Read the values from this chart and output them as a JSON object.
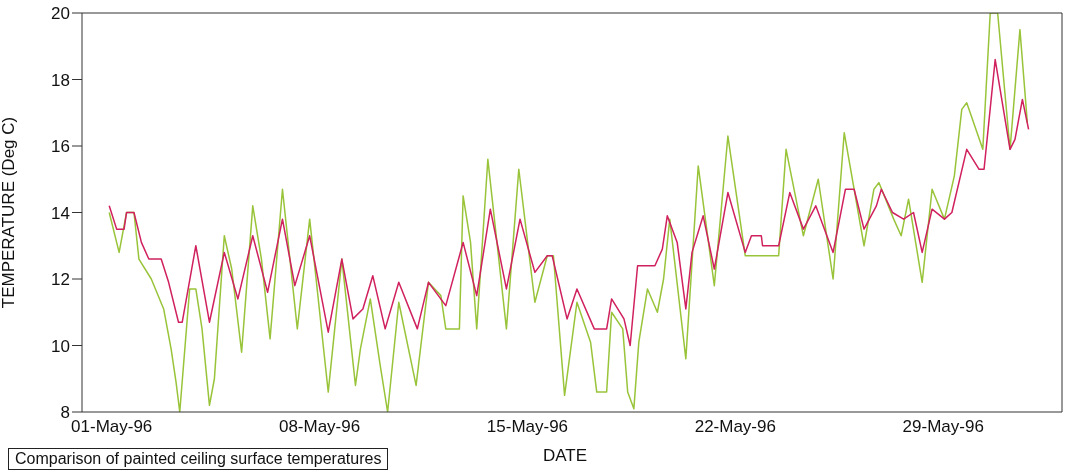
{
  "chart_data": {
    "type": "line",
    "xlabel": "DATE",
    "ylabel": "TEMPERATURE (Deg C)",
    "annotations": [
      "Comparison of painted ceiling surface temperatures"
    ],
    "xlim": [
      "1996-04-30",
      "1996-06-02"
    ],
    "xticks": [
      {
        "value": "1996-05-01",
        "label": "01-May-96"
      },
      {
        "value": "1996-05-08",
        "label": "08-May-96"
      },
      {
        "value": "1996-05-15",
        "label": "15-May-96"
      },
      {
        "value": "1996-05-22",
        "label": "22-May-96"
      },
      {
        "value": "1996-05-29",
        "label": "29-May-96"
      }
    ],
    "ylim": [
      8,
      20
    ],
    "yticks": [
      8,
      10,
      12,
      14,
      16,
      18,
      20
    ],
    "grid": false,
    "legend": false,
    "marker": "none",
    "line_style": "solid",
    "series": [
      {
        "color": "#99c43a",
        "x": [
          "1996-04-30T22:00",
          "1996-05-01T06:00",
          "1996-05-01T12:00",
          "1996-05-01T18:00",
          "1996-05-01T22:00",
          "1996-05-02T08:00",
          "1996-05-02T18:00",
          "1996-05-03T00:00",
          "1996-05-03T04:00",
          "1996-05-03T07:00",
          "1996-05-03T15:00",
          "1996-05-03T20:00",
          "1996-05-04T01:00",
          "1996-05-04T07:00",
          "1996-05-04T11:00",
          "1996-05-04T19:00",
          "1996-05-05T01:00",
          "1996-05-05T09:00",
          "1996-05-05T18:00",
          "1996-05-06T01:00",
          "1996-05-06T08:00",
          "1996-05-06T18:00",
          "1996-05-07T06:00",
          "1996-05-07T16:00",
          "1996-05-08T07:00",
          "1996-05-08T18:00",
          "1996-05-09T05:00",
          "1996-05-09T09:00",
          "1996-05-09T17:00",
          "1996-05-10T01:00",
          "1996-05-10T07:00",
          "1996-05-10T16:00",
          "1996-05-11T06:00",
          "1996-05-11T16:00",
          "1996-05-12T02:00",
          "1996-05-12T06:00",
          "1996-05-12T17:00",
          "1996-05-12T20:00",
          "1996-05-13T02:00",
          "1996-05-13T07:00",
          "1996-05-13T16:00",
          "1996-05-14T07:00",
          "1996-05-14T17:00",
          "1996-05-15T06:00",
          "1996-05-15T16:00",
          "1996-05-15T21:00",
          "1996-05-16T06:00",
          "1996-05-16T16:00",
          "1996-05-17T03:00",
          "1996-05-17T08:00",
          "1996-05-17T16:00",
          "1996-05-17T20:00",
          "1996-05-18T05:00",
          "1996-05-18T09:00",
          "1996-05-18T14:00",
          "1996-05-18T18:00",
          "1996-05-19T01:00",
          "1996-05-19T09:00",
          "1996-05-19T14:00",
          "1996-05-19T19:00",
          "1996-05-20T08:00",
          "1996-05-20T18:00",
          "1996-05-21T07:00",
          "1996-05-21T18:00",
          "1996-05-22T08:00",
          "1996-05-22T18:00",
          "1996-05-23T11:00",
          "1996-05-23T17:00",
          "1996-05-24T07:00",
          "1996-05-24T19:00",
          "1996-05-25T07:00",
          "1996-05-25T16:00",
          "1996-05-26T08:00",
          "1996-05-26T16:00",
          "1996-05-26T20:00",
          "1996-05-27T08:00",
          "1996-05-27T14:00",
          "1996-05-27T20:00",
          "1996-05-28T07:00",
          "1996-05-28T15:00",
          "1996-05-29T01:00",
          "1996-05-29T09:00",
          "1996-05-29T15:00",
          "1996-05-29T19:00",
          "1996-05-30T08:00",
          "1996-05-30T14:00",
          "1996-05-30T20:00",
          "1996-05-31T06:00",
          "1996-05-31T14:00",
          "1996-05-31T20:00"
        ],
        "values": [
          14.0,
          12.8,
          14.0,
          14.0,
          12.6,
          12.0,
          11.1,
          9.9,
          8.9,
          8.0,
          11.7,
          11.7,
          10.5,
          8.2,
          9.0,
          13.3,
          12.3,
          9.8,
          14.2,
          12.6,
          10.2,
          14.7,
          10.5,
          13.8,
          8.6,
          12.6,
          8.8,
          9.9,
          11.4,
          9.4,
          8.0,
          11.3,
          8.8,
          11.9,
          11.5,
          10.5,
          10.5,
          14.5,
          13.1,
          10.5,
          15.6,
          10.5,
          15.3,
          11.3,
          12.7,
          12.7,
          8.5,
          11.3,
          10.1,
          8.6,
          8.6,
          11.0,
          10.5,
          8.6,
          8.1,
          10.1,
          11.7,
          11.0,
          12.0,
          13.8,
          9.6,
          15.4,
          11.8,
          16.3,
          12.7,
          12.7,
          12.7,
          15.9,
          13.3,
          15.0,
          12.0,
          16.4,
          13.0,
          14.7,
          14.9,
          13.8,
          13.3,
          14.4,
          11.9,
          14.7,
          13.8,
          15.1,
          17.1,
          17.3,
          15.9,
          20,
          20,
          15.9,
          19.5,
          16.7
        ]
      },
      {
        "color": "#d0215e",
        "x": [
          "1996-04-30T22:00",
          "1996-05-01T04:00",
          "1996-05-01T10:00",
          "1996-05-01T12:00",
          "1996-05-01T18:00",
          "1996-05-02T00:00",
          "1996-05-02T06:00",
          "1996-05-02T16:00",
          "1996-05-02T22:00",
          "1996-05-03T06:00",
          "1996-05-03T09:00",
          "1996-05-03T20:00",
          "1996-05-04T07:00",
          "1996-05-04T19:00",
          "1996-05-05T06:00",
          "1996-05-05T18:00",
          "1996-05-06T06:00",
          "1996-05-06T18:00",
          "1996-05-07T04:00",
          "1996-05-07T16:00",
          "1996-05-08T07:00",
          "1996-05-08T18:00",
          "1996-05-09T03:00",
          "1996-05-09T11:00",
          "1996-05-09T19:00",
          "1996-05-10T05:00",
          "1996-05-10T16:00",
          "1996-05-11T07:00",
          "1996-05-11T16:00",
          "1996-05-12T06:00",
          "1996-05-12T20:00",
          "1996-05-13T07:00",
          "1996-05-13T18:00",
          "1996-05-14T07:00",
          "1996-05-14T18:00",
          "1996-05-15T06:00",
          "1996-05-15T16:00",
          "1996-05-15T20:00",
          "1996-05-16T08:00",
          "1996-05-16T16:00",
          "1996-05-17T06:00",
          "1996-05-17T16:00",
          "1996-05-17T20:00",
          "1996-05-18T06:00",
          "1996-05-18T11:00",
          "1996-05-18T17:00",
          "1996-05-19T07:00",
          "1996-05-19T13:00",
          "1996-05-19T17:00",
          "1996-05-20T01:00",
          "1996-05-20T08:00",
          "1996-05-20T13:00",
          "1996-05-20T22:00",
          "1996-05-21T07:00",
          "1996-05-21T18:00",
          "1996-05-22T08:00",
          "1996-05-22T13:00",
          "1996-05-22T21:00",
          "1996-05-22T22:00",
          "1996-05-23T11:00",
          "1996-05-23T20:00",
          "1996-05-24T07:00",
          "1996-05-24T17:00",
          "1996-05-25T07:00",
          "1996-05-25T17:00",
          "1996-05-26T00:00",
          "1996-05-26T08:00",
          "1996-05-26T18:00",
          "1996-05-26T22:00",
          "1996-05-27T07:00",
          "1996-05-27T16:00",
          "1996-05-28T00:00",
          "1996-05-28T07:00",
          "1996-05-28T15:00",
          "1996-05-29T01:00",
          "1996-05-29T07:00",
          "1996-05-29T19:00",
          "1996-05-30T05:00",
          "1996-05-30T09:00",
          "1996-05-30T18:00",
          "1996-05-31T06:00",
          "1996-05-31T10:00",
          "1996-05-31T16:00",
          "1996-05-31T21:00"
        ],
        "values": [
          14.2,
          13.5,
          13.5,
          14.0,
          14.0,
          13.1,
          12.6,
          12.6,
          11.9,
          10.7,
          10.7,
          13.0,
          10.7,
          12.8,
          11.4,
          13.3,
          11.6,
          13.8,
          11.8,
          13.3,
          10.4,
          12.6,
          10.8,
          11.1,
          12.1,
          10.5,
          11.9,
          10.5,
          11.9,
          11.2,
          13.1,
          11.5,
          14.1,
          11.7,
          13.8,
          12.2,
          12.7,
          12.7,
          10.8,
          11.7,
          10.5,
          10.5,
          11.4,
          10.8,
          10.0,
          12.4,
          12.4,
          12.9,
          13.9,
          13.1,
          11.1,
          12.8,
          13.9,
          12.3,
          14.6,
          12.8,
          13.3,
          13.3,
          13.0,
          13.0,
          14.6,
          13.5,
          14.2,
          12.8,
          14.7,
          14.7,
          13.5,
          14.2,
          14.7,
          14.0,
          13.8,
          14.0,
          12.8,
          14.1,
          13.8,
          14.0,
          15.9,
          15.3,
          15.3,
          18.6,
          15.9,
          16.2,
          17.4,
          16.5
        ]
      }
    ]
  }
}
